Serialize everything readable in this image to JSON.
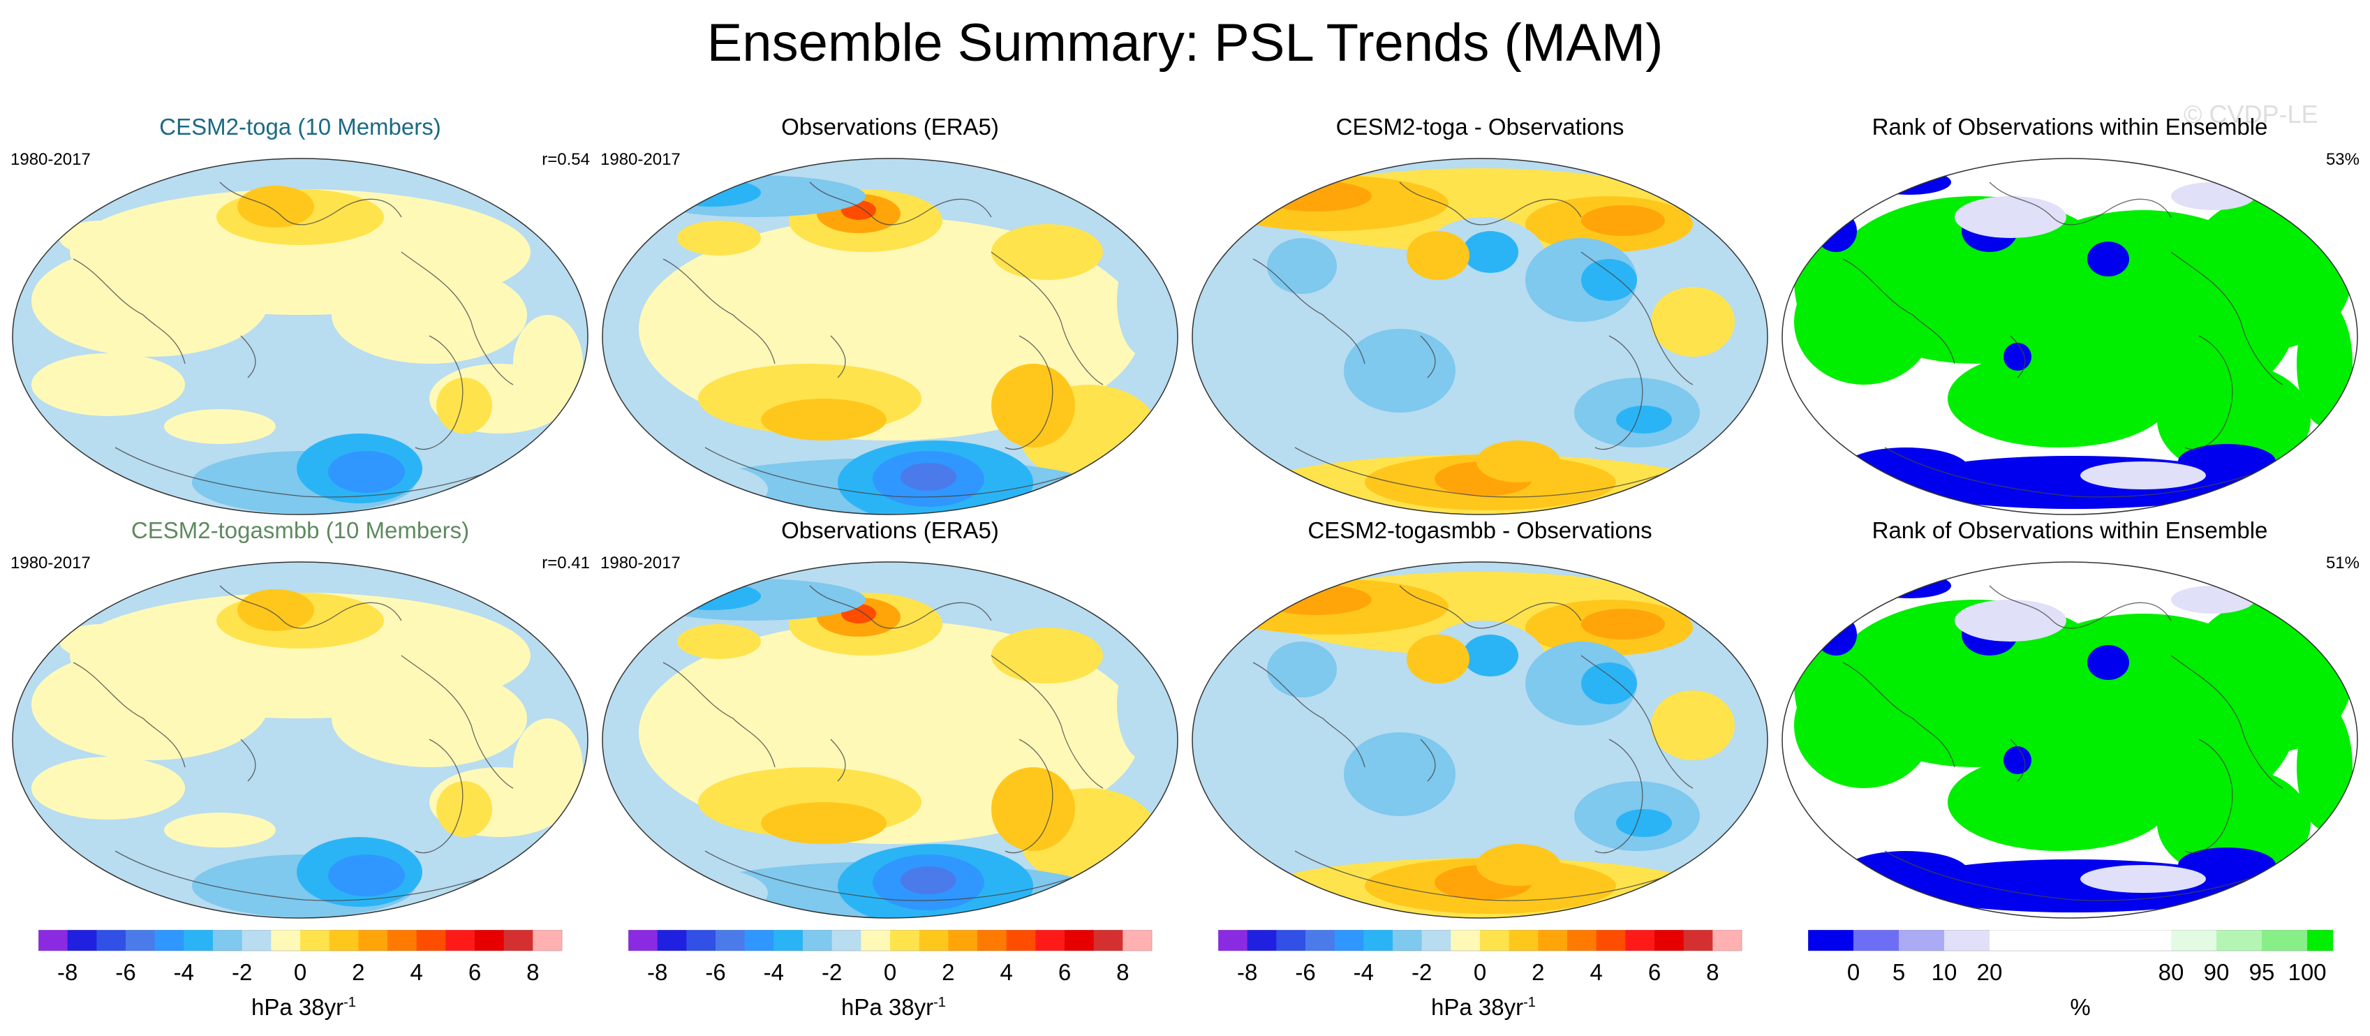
{
  "title": "Ensemble Summary: PSL Trends (MAM)",
  "watermark": "© CVDP-LE",
  "rows": [
    {
      "panels": [
        {
          "title": "CESM2-toga (10 Members)",
          "title_color": "#1a6a86",
          "left_label": "1980-2017",
          "right_label": "r=0.54",
          "kind": "trend_model"
        },
        {
          "title": "Observations (ERA5)",
          "title_color": "#000000",
          "left_label": "1980-2017",
          "right_label": "",
          "kind": "trend_obs"
        },
        {
          "title": "CESM2-toga - Observations",
          "title_color": "#000000",
          "left_label": "",
          "right_label": "",
          "kind": "trend_diff"
        },
        {
          "title": "Rank of Observations within Ensemble",
          "title_color": "#000000",
          "left_label": "",
          "right_label": "53%",
          "kind": "rank"
        }
      ]
    },
    {
      "panels": [
        {
          "title": "CESM2-togasmbb (10 Members)",
          "title_color": "#5e8a60",
          "left_label": "1980-2017",
          "right_label": "r=0.41",
          "kind": "trend_model"
        },
        {
          "title": "Observations (ERA5)",
          "title_color": "#000000",
          "left_label": "1980-2017",
          "right_label": "",
          "kind": "trend_obs"
        },
        {
          "title": "CESM2-togasmbb - Observations",
          "title_color": "#000000",
          "left_label": "",
          "right_label": "",
          "kind": "trend_diff"
        },
        {
          "title": "Rank of Observations within Ensemble",
          "title_color": "#000000",
          "left_label": "",
          "right_label": "51%",
          "kind": "rank"
        }
      ]
    }
  ],
  "trend_colorbar": {
    "colors": [
      "#8a2be2",
      "#2020e0",
      "#3050e6",
      "#4b7bea",
      "#2f97ff",
      "#2bb4f5",
      "#7fc8ee",
      "#b8dcf0",
      "#fff9b8",
      "#ffe34d",
      "#ffc71c",
      "#ffa50a",
      "#ff7a00",
      "#ff4d00",
      "#ff1a1a",
      "#e60000",
      "#d43030",
      "#ffb0b0"
    ],
    "tick_labels": [
      "-8",
      "-6",
      "-4",
      "-2",
      "0",
      "2",
      "4",
      "6",
      "8"
    ],
    "units_base": "hPa 38yr",
    "units_sup": "-1"
  },
  "rank_colorbar": {
    "colors": [
      "#0000ee",
      "#6e6ef5",
      "#aaaaf5",
      "#e0e0f8",
      "#ffffff",
      "#ffffff",
      "#e2fbe2",
      "#b4f5b4",
      "#88ef88",
      "#00ee00"
    ],
    "tick_labels": [
      "0",
      "5",
      "10",
      "20",
      "80",
      "90",
      "95",
      "100"
    ],
    "units": "%"
  },
  "colors": {
    "trend_neg_weak": "#b8dcf0",
    "trend_pos_weak": "#fff9b8",
    "rank_high": "#00ee00",
    "rank_low": "#0000ee"
  }
}
